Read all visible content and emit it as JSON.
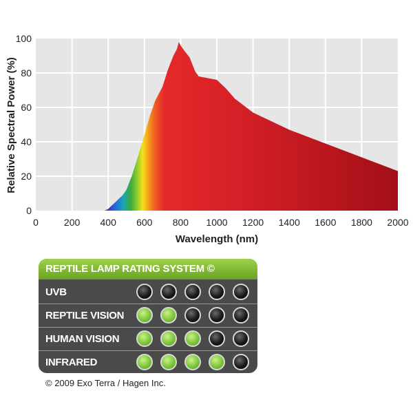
{
  "chart_data": {
    "type": "area",
    "xlabel": "Wavelength (nm)",
    "ylabel": "Relative Spectral Power (%)",
    "xlim": [
      0,
      2000
    ],
    "ylim": [
      0,
      100
    ],
    "x_ticks": [
      0,
      200,
      400,
      600,
      800,
      1000,
      1200,
      1400,
      1600,
      1800,
      2000
    ],
    "y_ticks": [
      0,
      20,
      40,
      60,
      80,
      100
    ],
    "grid": true,
    "x": [
      380,
      400,
      420,
      450,
      480,
      500,
      530,
      560,
      600,
      630,
      660,
      700,
      730,
      760,
      780,
      790,
      800,
      820,
      850,
      880,
      900,
      950,
      1000,
      1050,
      1100,
      1200,
      1300,
      1400,
      1500,
      1600,
      1700,
      1800,
      1900,
      2000
    ],
    "y": [
      0,
      1,
      3,
      6,
      9,
      12,
      20,
      30,
      44,
      55,
      64,
      72,
      82,
      90,
      94,
      98,
      96,
      93,
      89,
      81,
      78,
      77,
      76,
      71,
      65,
      57,
      52,
      47,
      43,
      39,
      35,
      31,
      27,
      23
    ]
  },
  "rating": {
    "title": "REPTILE LAMP RATING SYSTEM ©",
    "rows": [
      {
        "label": "UVB",
        "rating": 0
      },
      {
        "label": "REPTILE VISION",
        "rating": 2
      },
      {
        "label": "HUMAN VISION",
        "rating": 3
      },
      {
        "label": "INFRARED",
        "rating": 4
      }
    ],
    "max_rating": 5,
    "on_color": "#7dc63c",
    "off_color": "#111111"
  },
  "copyright": "© 2009 Exo Terra / Hagen Inc."
}
